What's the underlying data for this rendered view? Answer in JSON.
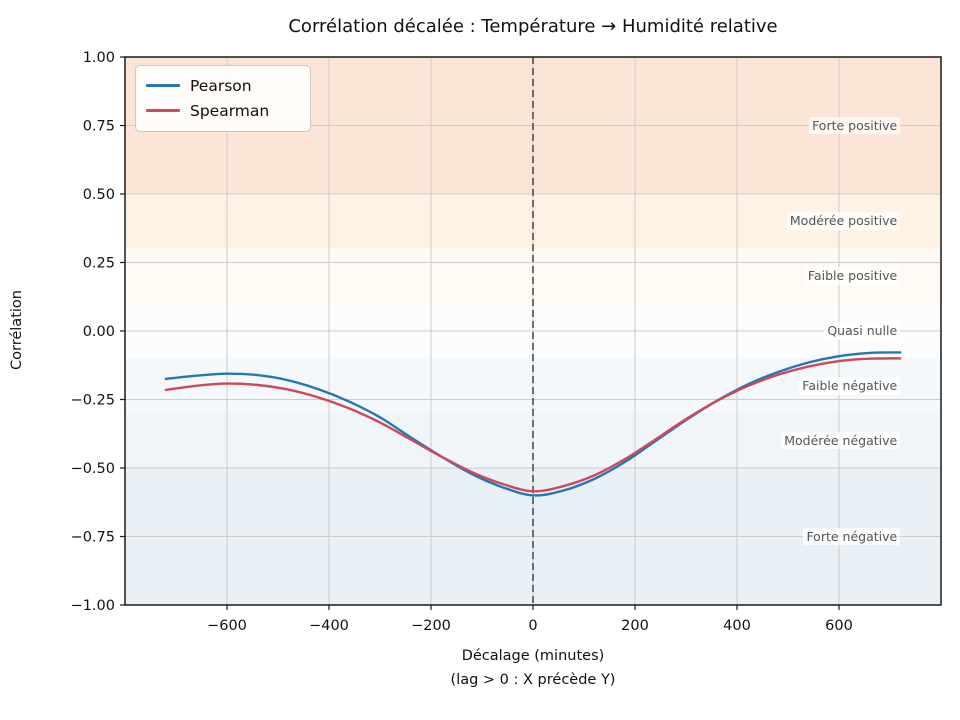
{
  "title": "Corrélation décalée : Température → Humidité relative",
  "axes": {
    "xlabel": "Décalage (minutes)",
    "xlabel_sub": "(lag > 0 : X précède Y)",
    "ylabel": "Corrélation",
    "xlim": [
      -800,
      800
    ],
    "ylim": [
      -1,
      1
    ],
    "grid": true,
    "xticks": [
      {
        "v": -600,
        "label": "−600"
      },
      {
        "v": -400,
        "label": "−400"
      },
      {
        "v": -200,
        "label": "−200"
      },
      {
        "v": 0,
        "label": "0"
      },
      {
        "v": 200,
        "label": "200"
      },
      {
        "v": 400,
        "label": "400"
      },
      {
        "v": 600,
        "label": "600"
      }
    ],
    "yticks": [
      {
        "v": 1.0,
        "label": "1.00"
      },
      {
        "v": 0.75,
        "label": "0.75"
      },
      {
        "v": 0.5,
        "label": "0.50"
      },
      {
        "v": 0.25,
        "label": "0.25"
      },
      {
        "v": 0.0,
        "label": "0.00"
      },
      {
        "v": -0.25,
        "label": "−0.25"
      },
      {
        "v": -0.5,
        "label": "−0.50"
      },
      {
        "v": -0.75,
        "label": "−0.75"
      },
      {
        "v": -1.0,
        "label": "−1.00"
      }
    ]
  },
  "chart_data": {
    "type": "line",
    "x": [
      -720,
      -660,
      -600,
      -540,
      -480,
      -420,
      -360,
      -300,
      -240,
      -180,
      -120,
      -60,
      0,
      60,
      120,
      180,
      240,
      300,
      360,
      420,
      480,
      540,
      600,
      660,
      720
    ],
    "series": [
      {
        "name": "Pearson",
        "color": "#2577b4",
        "values": [
          -0.175,
          -0.163,
          -0.156,
          -0.161,
          -0.18,
          -0.213,
          -0.258,
          -0.315,
          -0.388,
          -0.458,
          -0.522,
          -0.57,
          -0.6,
          -0.582,
          -0.54,
          -0.478,
          -0.402,
          -0.325,
          -0.255,
          -0.196,
          -0.15,
          -0.115,
          -0.092,
          -0.08,
          -0.078
        ]
      },
      {
        "name": "Spearman",
        "color": "#cd4a5c",
        "values": [
          -0.215,
          -0.2,
          -0.192,
          -0.197,
          -0.214,
          -0.243,
          -0.283,
          -0.334,
          -0.396,
          -0.458,
          -0.515,
          -0.558,
          -0.585,
          -0.566,
          -0.527,
          -0.468,
          -0.396,
          -0.322,
          -0.256,
          -0.202,
          -0.16,
          -0.13,
          -0.11,
          -0.101,
          -0.1
        ]
      }
    ],
    "vline": {
      "x": 0,
      "color": "#4d4d4d",
      "style": "dashed"
    },
    "bands": [
      {
        "label": "Forte positive",
        "from": 0.5,
        "to": 1.0,
        "color": "#fce5d7",
        "label_y": 0.75
      },
      {
        "label": "Modérée positive",
        "from": 0.3,
        "to": 0.5,
        "color": "#fdf2e4",
        "label_y": 0.4
      },
      {
        "label": "Faible positive",
        "from": 0.1,
        "to": 0.3,
        "color": "#fefaf4",
        "label_y": 0.2
      },
      {
        "label": "Quasi nulle",
        "from": -0.1,
        "to": 0.1,
        "color": "#fbfcfd",
        "label_y": 0.0
      },
      {
        "label": "Faible négative",
        "from": -0.3,
        "to": -0.1,
        "color": "#f4f8fb",
        "label_y": -0.2
      },
      {
        "label": "Modérée négative",
        "from": -0.5,
        "to": -0.3,
        "color": "#eff5f9",
        "label_y": -0.4
      },
      {
        "label": "Forte négative",
        "from": -1.0,
        "to": -0.5,
        "color": "#e9f0f6",
        "label_y": -0.75
      }
    ],
    "legend": {
      "position": "upper-left",
      "entries": [
        "Pearson",
        "Spearman"
      ]
    },
    "zone_label_anchor_x": 720
  },
  "colors": {
    "grid": "#cccccc",
    "frame": "#1a1a1a",
    "zone_label_text": "#555555",
    "tick_text": "#111111"
  }
}
